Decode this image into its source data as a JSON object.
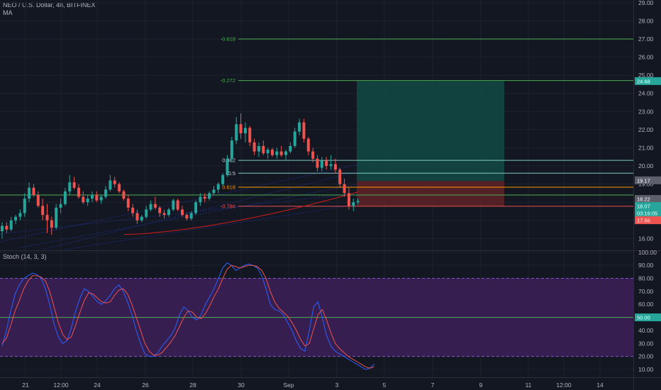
{
  "header": {
    "symbol_line": "NEO / U.S. Dollar, 4h, BITFINEX",
    "indicator": "MA",
    "oscillator": "Stoch (14, 3, 3)"
  },
  "colors": {
    "background": "#131722",
    "up": "#26a69a",
    "down": "#ef5350",
    "fib_green": "#4caf50",
    "fib_orange": "#ff9800",
    "fib_teal": "#80cbc4",
    "ma": "#b71c1c",
    "channel": "#1e2a78",
    "target_zone": "#134a44",
    "stop_zone": "#5b2226",
    "stoch_k": "#2962ff",
    "stoch_d": "#ef5350",
    "stoch_band": "#3b1f57"
  },
  "chart_data": [
    {
      "type": "candlestick",
      "title": "NEO / U.S. Dollar, 4h, BITFINEX",
      "x_ticks": [
        "21",
        "12:00",
        "24",
        "26",
        "28",
        "30",
        "Sep",
        "3",
        "5",
        "7",
        "9",
        "11",
        "12:00",
        "14"
      ],
      "y_ticks": [
        16,
        17,
        18,
        19,
        20,
        21,
        22,
        23,
        24,
        25,
        26,
        27,
        28,
        29
      ],
      "ylim": [
        15.35,
        29.15
      ],
      "fib_levels": [
        {
          "label": "-0.618",
          "value": 27.0,
          "color": "green"
        },
        {
          "label": "-0.272",
          "value": 24.71,
          "color": "green"
        },
        {
          "label": "0.382",
          "value": 20.31,
          "color": "teal"
        },
        {
          "label": "0.5",
          "value": 19.6,
          "color": "teal"
        },
        {
          "label": "0.618",
          "value": 18.83,
          "color": "orange"
        },
        {
          "label": "",
          "value": 18.4,
          "color": "green"
        },
        {
          "label": "-0.786",
          "value": 17.78,
          "color": "red"
        }
      ],
      "position": {
        "entry": 19.17,
        "target": 24.68,
        "stop": 17.78
      },
      "price_tags": [
        {
          "text": "24.68",
          "value": 24.68,
          "color": "#26a69a"
        },
        {
          "text": "19.17",
          "value": 19.17,
          "color": "#5d606b"
        },
        {
          "text": "18.22",
          "value": 18.22,
          "color": "#5d606b"
        },
        {
          "text": "18.07",
          "value": 18.07,
          "color": "#26a69a"
        },
        {
          "text": "03:16:05",
          "value": 17.78,
          "color": "#26a69a"
        },
        {
          "text": "17.56",
          "value": 17.56,
          "color": "#ef5350"
        }
      ],
      "candles": [
        [
          16.4,
          16.9,
          16.0,
          16.7
        ],
        [
          16.7,
          16.9,
          16.3,
          16.5
        ],
        [
          16.5,
          17.2,
          16.4,
          17.0
        ],
        [
          17.0,
          17.3,
          16.8,
          17.2
        ],
        [
          17.2,
          17.6,
          17.0,
          17.4
        ],
        [
          17.4,
          18.5,
          17.2,
          18.2
        ],
        [
          18.2,
          19.1,
          18.0,
          18.8
        ],
        [
          18.8,
          19.0,
          18.3,
          18.4
        ],
        [
          18.4,
          18.6,
          17.7,
          17.8
        ],
        [
          17.8,
          18.2,
          17.0,
          17.3
        ],
        [
          17.3,
          17.9,
          16.3,
          17.0
        ],
        [
          17.0,
          17.2,
          16.2,
          16.6
        ],
        [
          16.6,
          17.9,
          16.5,
          17.7
        ],
        [
          17.7,
          18.2,
          17.4,
          17.9
        ],
        [
          17.9,
          18.8,
          17.8,
          18.6
        ],
        [
          18.6,
          19.5,
          18.4,
          19.1
        ],
        [
          19.1,
          19.4,
          18.7,
          18.8
        ],
        [
          18.8,
          19.0,
          18.2,
          18.3
        ],
        [
          18.3,
          18.6,
          17.9,
          18.0
        ],
        [
          18.0,
          18.4,
          17.8,
          18.2
        ],
        [
          18.2,
          18.6,
          18.0,
          18.4
        ],
        [
          18.4,
          18.6,
          18.0,
          18.1
        ],
        [
          18.1,
          18.4,
          17.9,
          18.3
        ],
        [
          18.3,
          18.9,
          18.2,
          18.7
        ],
        [
          18.7,
          19.5,
          18.6,
          19.2
        ],
        [
          19.2,
          19.4,
          18.8,
          19.0
        ],
        [
          19.0,
          19.1,
          18.5,
          18.6
        ],
        [
          18.6,
          18.7,
          18.1,
          18.2
        ],
        [
          18.2,
          18.4,
          17.5,
          17.7
        ],
        [
          17.7,
          17.9,
          17.2,
          17.4
        ],
        [
          17.4,
          17.6,
          16.8,
          17.0
        ],
        [
          17.0,
          17.3,
          16.9,
          17.2
        ],
        [
          17.2,
          17.8,
          17.1,
          17.6
        ],
        [
          17.6,
          18.1,
          17.5,
          17.9
        ],
        [
          17.9,
          18.3,
          17.6,
          17.7
        ],
        [
          17.7,
          17.8,
          17.2,
          17.4
        ],
        [
          17.4,
          17.6,
          17.1,
          17.3
        ],
        [
          17.3,
          17.7,
          17.2,
          17.6
        ],
        [
          17.6,
          18.2,
          17.5,
          18.1
        ],
        [
          18.1,
          18.2,
          17.5,
          17.6
        ],
        [
          17.6,
          17.8,
          17.2,
          17.3
        ],
        [
          17.3,
          17.4,
          17.0,
          17.1
        ],
        [
          17.1,
          17.5,
          17.0,
          17.4
        ],
        [
          17.4,
          18.1,
          17.3,
          18.0
        ],
        [
          18.0,
          18.5,
          17.8,
          18.3
        ],
        [
          18.3,
          18.5,
          18.0,
          18.2
        ],
        [
          18.2,
          18.6,
          18.1,
          18.5
        ],
        [
          18.5,
          18.9,
          18.4,
          18.7
        ],
        [
          18.7,
          19.1,
          18.5,
          19.0
        ],
        [
          19.0,
          19.6,
          18.9,
          19.5
        ],
        [
          19.5,
          20.6,
          19.4,
          20.4
        ],
        [
          20.4,
          21.6,
          20.2,
          21.4
        ],
        [
          21.4,
          22.7,
          21.2,
          22.3
        ],
        [
          22.3,
          22.9,
          21.5,
          21.8
        ],
        [
          21.8,
          22.4,
          21.3,
          22.1
        ],
        [
          22.1,
          22.2,
          21.1,
          21.3
        ],
        [
          21.3,
          21.5,
          20.6,
          20.8
        ],
        [
          20.8,
          21.3,
          20.5,
          21.1
        ],
        [
          21.1,
          21.4,
          20.6,
          20.7
        ],
        [
          20.7,
          21.0,
          20.4,
          20.9
        ],
        [
          20.9,
          21.0,
          20.5,
          20.6
        ],
        [
          20.6,
          21.0,
          20.4,
          20.8
        ],
        [
          20.8,
          21.1,
          20.5,
          20.6
        ],
        [
          20.6,
          20.9,
          20.3,
          20.8
        ],
        [
          20.8,
          21.3,
          20.7,
          21.1
        ],
        [
          21.1,
          22.1,
          21.0,
          21.9
        ],
        [
          21.9,
          22.6,
          21.7,
          22.4
        ],
        [
          22.4,
          22.6,
          21.3,
          21.5
        ],
        [
          21.5,
          21.6,
          20.6,
          20.8
        ],
        [
          20.8,
          21.0,
          20.2,
          20.4
        ],
        [
          20.4,
          20.6,
          19.7,
          19.9
        ],
        [
          19.9,
          20.5,
          19.7,
          20.3
        ],
        [
          20.3,
          20.5,
          19.8,
          20.0
        ],
        [
          20.0,
          20.6,
          19.8,
          20.1
        ],
        [
          20.1,
          20.4,
          19.6,
          19.8
        ],
        [
          19.8,
          19.9,
          18.8,
          19.0
        ],
        [
          19.0,
          19.3,
          18.3,
          18.5
        ],
        [
          18.5,
          18.8,
          17.6,
          17.8
        ],
        [
          17.8,
          18.2,
          17.5,
          18.0
        ],
        [
          18.0,
          18.2,
          17.9,
          18.07
        ]
      ]
    },
    {
      "type": "line",
      "title": "Stoch (14, 3, 3)",
      "y_ticks": [
        10,
        20,
        30,
        40,
        50,
        60,
        70,
        80,
        90,
        100
      ],
      "ylim": [
        4,
        101
      ],
      "band": [
        20,
        80
      ],
      "price_tags": [
        {
          "text": "50.00",
          "value": 50,
          "color": "#26a69a"
        }
      ],
      "series": [
        {
          "role": "k",
          "values": [
            28,
            40,
            55,
            68,
            75,
            80,
            82,
            84,
            83,
            80,
            72,
            60,
            45,
            35,
            30,
            32,
            42,
            55,
            65,
            72,
            70,
            66,
            62,
            60,
            63,
            67,
            72,
            75,
            70,
            62,
            52,
            40,
            30,
            22,
            20,
            20,
            23,
            28,
            32,
            36,
            42,
            52,
            58,
            55,
            50,
            48,
            52,
            60,
            66,
            72,
            80,
            88,
            92,
            90,
            86,
            88,
            90,
            91,
            90,
            88,
            82,
            72,
            60,
            56,
            55,
            52,
            46,
            40,
            32,
            26,
            24,
            40,
            58,
            62,
            50,
            36,
            28,
            24,
            22,
            20,
            18,
            16,
            14,
            12,
            10,
            11,
            14
          ]
        },
        {
          "role": "d",
          "values": [
            30,
            34,
            44,
            55,
            63,
            72,
            78,
            82,
            82,
            81,
            78,
            70,
            58,
            46,
            37,
            33,
            35,
            44,
            54,
            63,
            69,
            68,
            65,
            62,
            61,
            62,
            67,
            71,
            72,
            68,
            60,
            50,
            40,
            30,
            24,
            21,
            21,
            23,
            27,
            31,
            36,
            43,
            50,
            55,
            54,
            50,
            49,
            53,
            59,
            66,
            72,
            80,
            87,
            90,
            89,
            88,
            89,
            90,
            90,
            89,
            86,
            80,
            70,
            62,
            57,
            54,
            51,
            46,
            40,
            33,
            28,
            30,
            41,
            52,
            56,
            48,
            38,
            30,
            26,
            23,
            20,
            18,
            16,
            14,
            12,
            11,
            12
          ]
        }
      ]
    }
  ]
}
